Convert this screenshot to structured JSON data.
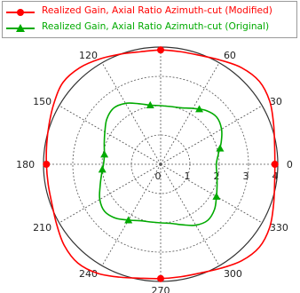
{
  "chart_data": {
    "type": "polar-line",
    "title": "",
    "r_range": [
      0,
      4
    ],
    "r_ticks": [
      0,
      1,
      2,
      3,
      4
    ],
    "angle_ticks": [
      0,
      30,
      60,
      90,
      120,
      150,
      180,
      210,
      240,
      270,
      300,
      330
    ],
    "angle_labels_shown": [
      "0",
      "30",
      "60",
      "120",
      "150",
      "180",
      "210",
      "240",
      "270",
      "300",
      "330"
    ],
    "grid": true,
    "legend_position": "top",
    "series": [
      {
        "name": "Realized Gain, Axial Ratio Azimuth-cut (Modified)",
        "color": "#ff0000",
        "marker": "circle",
        "marker_angles": [
          0,
          90,
          180,
          270
        ],
        "theta": [
          0,
          10,
          20,
          30,
          40,
          50,
          60,
          70,
          80,
          90,
          100,
          110,
          120,
          130,
          140,
          150,
          160,
          170,
          180,
          190,
          200,
          210,
          220,
          230,
          240,
          250,
          260,
          270,
          280,
          290,
          300,
          310,
          320,
          330,
          340,
          350
        ],
        "r": [
          3.9,
          3.95,
          4.1,
          4.3,
          4.4,
          4.3,
          4.1,
          3.95,
          3.9,
          3.9,
          3.9,
          4.0,
          4.15,
          4.3,
          4.35,
          4.2,
          4.05,
          3.95,
          3.9,
          3.9,
          3.95,
          4.1,
          4.3,
          4.4,
          4.3,
          4.1,
          3.95,
          3.9,
          3.9,
          3.95,
          4.1,
          4.3,
          4.4,
          4.3,
          4.1,
          3.95
        ]
      },
      {
        "name": "Realized Gain, Axial Ratio Azimuth-cut (Original)",
        "color": "#00aa00",
        "marker": "triangle",
        "marker_angles": [
          15,
          55,
          100,
          170,
          185,
          240,
          330
        ],
        "theta": [
          0,
          10,
          20,
          30,
          40,
          50,
          60,
          70,
          80,
          90,
          100,
          110,
          120,
          130,
          140,
          150,
          160,
          170,
          180,
          190,
          200,
          210,
          220,
          230,
          240,
          250,
          260,
          270,
          280,
          290,
          300,
          310,
          320,
          330,
          340,
          350
        ],
        "r": [
          1.9,
          2.0,
          2.2,
          2.4,
          2.5,
          2.4,
          2.2,
          2.05,
          2.0,
          2.0,
          2.05,
          2.2,
          2.4,
          2.5,
          2.4,
          2.2,
          2.05,
          1.95,
          1.95,
          2.05,
          2.2,
          2.4,
          2.5,
          2.4,
          2.2,
          2.05,
          2.0,
          2.0,
          2.05,
          2.2,
          2.4,
          2.5,
          2.4,
          2.2,
          2.05,
          1.95
        ]
      }
    ]
  }
}
